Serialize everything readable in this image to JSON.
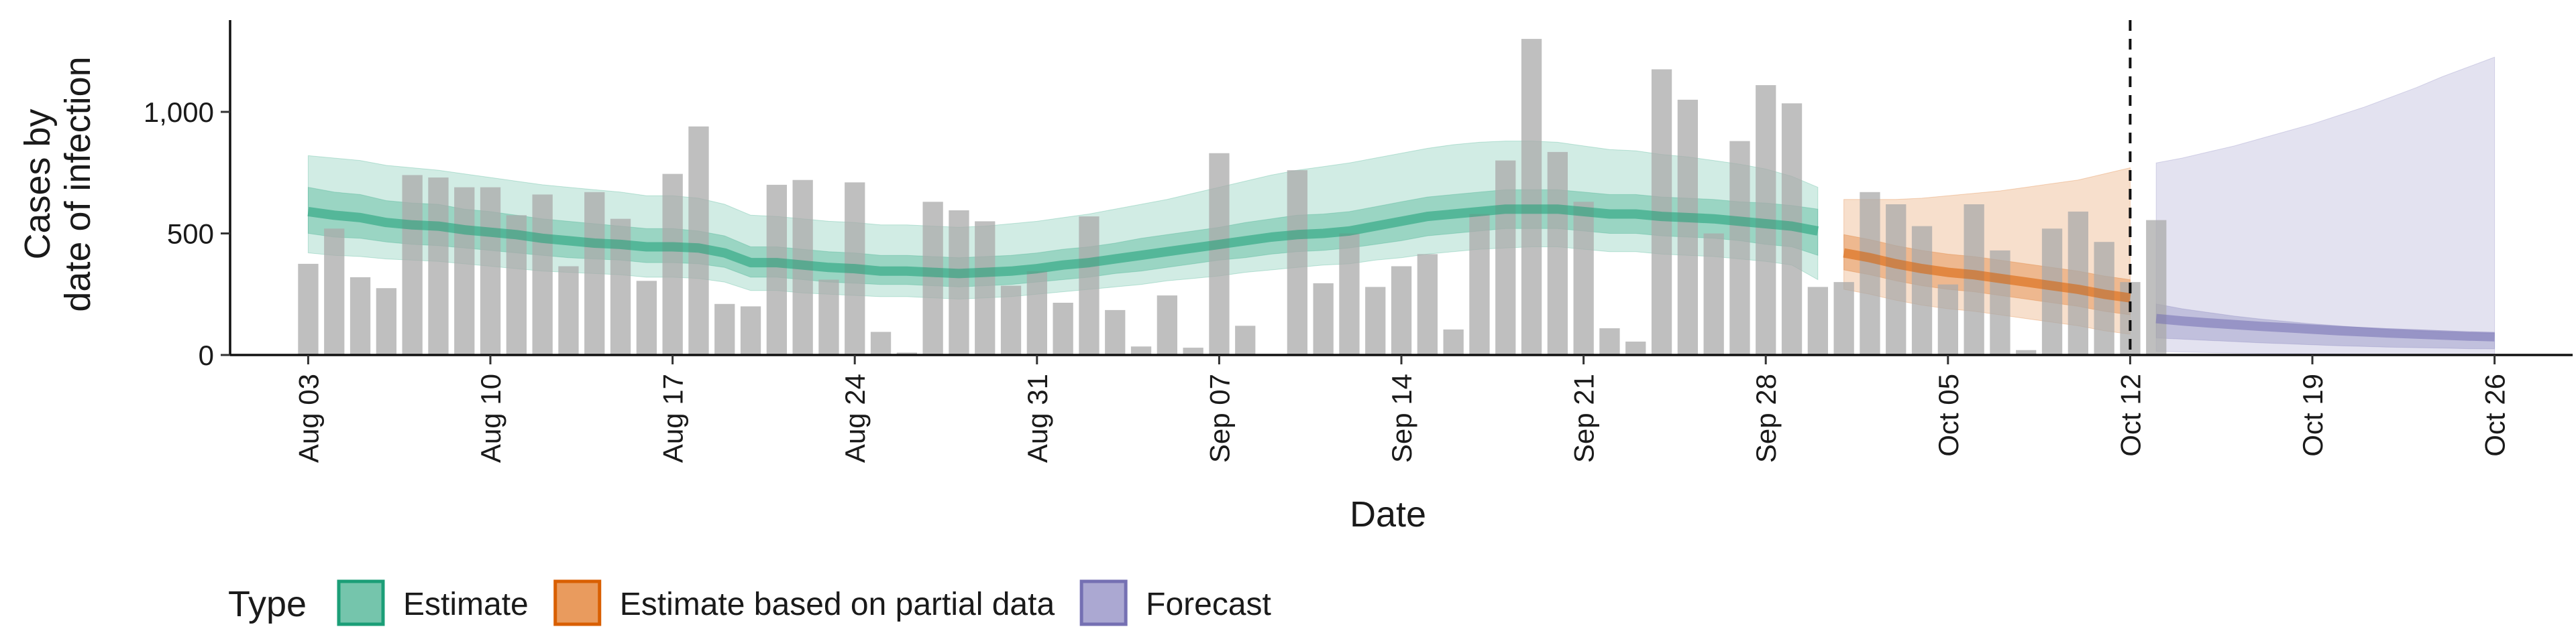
{
  "chart_data": {
    "type": "bar",
    "xlabel": "Date",
    "ylabel_lines": [
      "Cases by",
      "date of infection"
    ],
    "ylim": [
      0,
      1350
    ],
    "yticks": [
      {
        "value": 0,
        "label": "0"
      },
      {
        "value": 500,
        "label": "500"
      },
      {
        "value": 1000,
        "label": "1,000"
      }
    ],
    "x_range": [
      "2020-07-31",
      "2020-10-29"
    ],
    "x_ticks": [
      {
        "date": "2020-08-03",
        "label": "Aug 03"
      },
      {
        "date": "2020-08-10",
        "label": "Aug 10"
      },
      {
        "date": "2020-08-17",
        "label": "Aug 17"
      },
      {
        "date": "2020-08-24",
        "label": "Aug 24"
      },
      {
        "date": "2020-08-31",
        "label": "Aug 31"
      },
      {
        "date": "2020-09-07",
        "label": "Sep 07"
      },
      {
        "date": "2020-09-14",
        "label": "Sep 14"
      },
      {
        "date": "2020-09-21",
        "label": "Sep 21"
      },
      {
        "date": "2020-09-28",
        "label": "Sep 28"
      },
      {
        "date": "2020-10-05",
        "label": "Oct 05"
      },
      {
        "date": "2020-10-12",
        "label": "Oct 12"
      },
      {
        "date": "2020-10-19",
        "label": "Oct 19"
      },
      {
        "date": "2020-10-26",
        "label": "Oct 26"
      }
    ],
    "vline_date": "2020-10-12",
    "bars_start_date": "2020-08-03",
    "bars": [
      375,
      520,
      320,
      275,
      740,
      730,
      690,
      690,
      575,
      660,
      365,
      670,
      560,
      305,
      745,
      940,
      210,
      200,
      700,
      720,
      310,
      710,
      95,
      10,
      630,
      595,
      550,
      285,
      345,
      215,
      570,
      185,
      35,
      245,
      30,
      830,
      120,
      0,
      760,
      295,
      500,
      280,
      365,
      415,
      105,
      580,
      800,
      1300,
      835,
      630,
      110,
      55,
      1175,
      1050,
      500,
      880,
      1110,
      1035,
      280,
      300,
      670,
      620,
      530,
      290,
      620,
      430,
      20,
      520,
      590,
      465,
      300,
      555
    ],
    "series": [
      {
        "name": "Estimate",
        "color": "#1b9e77",
        "start_date": "2020-08-03",
        "median": [
          590,
          575,
          565,
          545,
          535,
          530,
          515,
          505,
          495,
          480,
          470,
          460,
          455,
          445,
          445,
          440,
          420,
          380,
          380,
          370,
          360,
          355,
          345,
          345,
          340,
          335,
          340,
          345,
          355,
          370,
          380,
          395,
          410,
          425,
          440,
          455,
          470,
          485,
          495,
          500,
          510,
          530,
          550,
          570,
          580,
          590,
          600,
          600,
          600,
          590,
          580,
          580,
          570,
          565,
          560,
          550,
          540,
          530,
          510
        ],
        "inner_lower": [
          500,
          485,
          480,
          465,
          455,
          450,
          440,
          430,
          420,
          410,
          400,
          395,
          390,
          380,
          380,
          375,
          360,
          320,
          320,
          310,
          300,
          295,
          290,
          290,
          285,
          280,
          285,
          290,
          300,
          310,
          320,
          335,
          345,
          360,
          375,
          390,
          400,
          415,
          425,
          430,
          440,
          455,
          470,
          490,
          500,
          510,
          520,
          520,
          520,
          510,
          500,
          500,
          490,
          485,
          480,
          470,
          455,
          445,
          410
        ],
        "inner_upper": [
          690,
          670,
          660,
          635,
          625,
          620,
          600,
          590,
          575,
          560,
          550,
          540,
          530,
          520,
          520,
          510,
          490,
          445,
          445,
          435,
          425,
          420,
          410,
          410,
          405,
          400,
          405,
          410,
          420,
          435,
          445,
          460,
          480,
          495,
          510,
          525,
          545,
          560,
          575,
          580,
          590,
          610,
          630,
          650,
          660,
          670,
          680,
          680,
          680,
          670,
          660,
          660,
          650,
          645,
          640,
          630,
          625,
          615,
          600
        ],
        "outer_lower": [
          420,
          410,
          405,
          395,
          390,
          385,
          375,
          365,
          355,
          345,
          340,
          335,
          330,
          320,
          320,
          315,
          300,
          265,
          265,
          255,
          250,
          245,
          240,
          240,
          235,
          230,
          235,
          240,
          250,
          260,
          270,
          280,
          290,
          305,
          315,
          325,
          340,
          350,
          360,
          370,
          375,
          390,
          400,
          415,
          425,
          435,
          440,
          445,
          445,
          435,
          425,
          425,
          415,
          410,
          405,
          395,
          385,
          370,
          310
        ],
        "outer_upper": [
          820,
          810,
          800,
          780,
          770,
          760,
          745,
          730,
          715,
          700,
          690,
          680,
          670,
          655,
          655,
          645,
          620,
          575,
          570,
          560,
          550,
          545,
          535,
          535,
          530,
          525,
          530,
          540,
          550,
          565,
          580,
          600,
          620,
          640,
          665,
          690,
          715,
          740,
          760,
          775,
          790,
          810,
          830,
          850,
          865,
          875,
          880,
          880,
          875,
          860,
          845,
          840,
          825,
          815,
          800,
          785,
          765,
          735,
          690
        ]
      },
      {
        "name": "Estimate based on partial data",
        "color": "#d95f02",
        "start_date": "2020-10-01",
        "median": [
          420,
          400,
          375,
          355,
          340,
          330,
          315,
          300,
          285,
          270,
          250,
          235
        ],
        "inner_lower": [
          350,
          330,
          305,
          285,
          270,
          260,
          245,
          230,
          215,
          200,
          180,
          165
        ],
        "inner_upper": [
          495,
          475,
          450,
          430,
          415,
          405,
          390,
          375,
          360,
          345,
          325,
          310
        ],
        "outer_lower": [
          270,
          250,
          225,
          205,
          190,
          180,
          165,
          150,
          135,
          120,
          100,
          85
        ],
        "outer_upper": [
          640,
          640,
          640,
          645,
          655,
          665,
          675,
          690,
          705,
          720,
          745,
          770
        ]
      },
      {
        "name": "Forecast",
        "color": "#7570b3",
        "start_date": "2020-10-13",
        "median": [
          150,
          140,
          132,
          125,
          118,
          112,
          106,
          100,
          95,
          90,
          86,
          82,
          78,
          75
        ],
        "inner_lower": [
          70,
          65,
          60,
          55,
          50,
          46,
          42,
          38,
          35,
          32,
          30,
          28,
          26,
          25
        ],
        "inner_upper": [
          210,
          190,
          175,
          160,
          148,
          138,
          128,
          120,
          112,
          105,
          100,
          96,
          92,
          90
        ],
        "outer_lower": [
          15,
          12,
          10,
          8,
          7,
          6,
          5,
          4,
          3,
          2,
          2,
          1,
          1,
          0
        ],
        "outer_upper": [
          790,
          810,
          835,
          860,
          890,
          920,
          950,
          985,
          1020,
          1060,
          1100,
          1145,
          1185,
          1225
        ]
      }
    ],
    "legend": {
      "title": "Type",
      "position": "bottom",
      "items": [
        {
          "label": "Estimate",
          "fill": "#75c5ac",
          "stroke": "#1b9e77"
        },
        {
          "label": "Estimate based on partial data",
          "fill": "#e99b5e",
          "stroke": "#d95f02"
        },
        {
          "label": "Forecast",
          "fill": "#aba8d2",
          "stroke": "#7570b3"
        }
      ]
    },
    "bar_color": "#a9a9a9",
    "grid": false
  }
}
